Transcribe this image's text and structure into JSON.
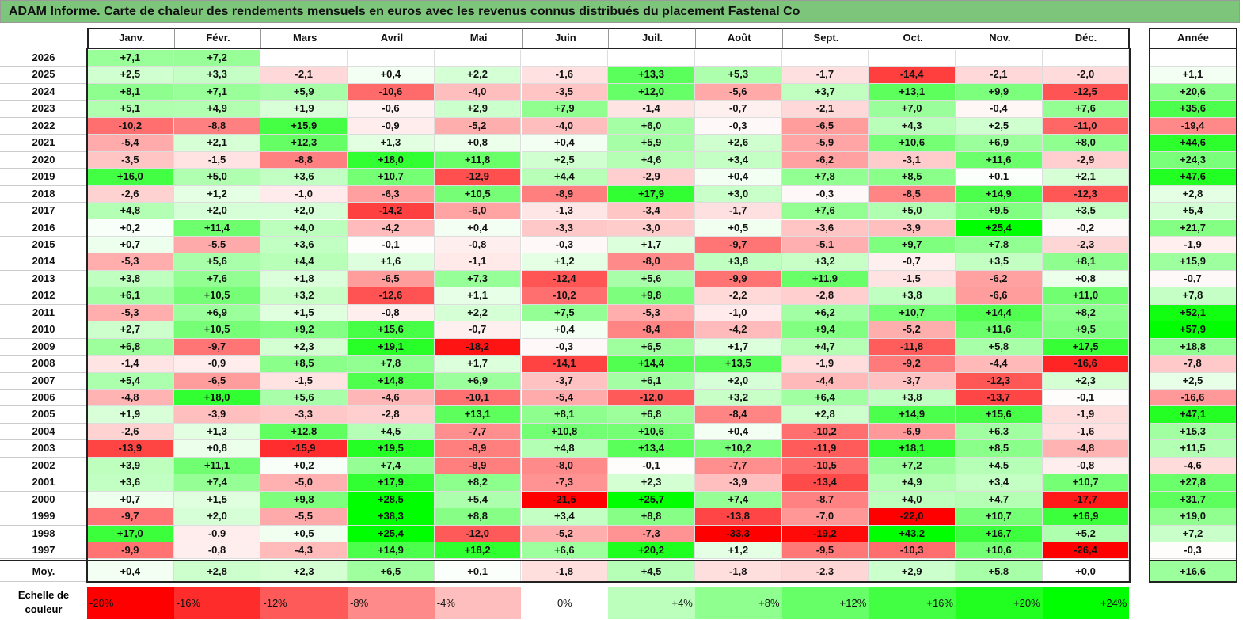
{
  "title": "ADAM Informe. Carte de chaleur des rendements mensuels en euros avec les revenus connus distribués du placement Fastenal Co",
  "chart_data": {
    "type": "heatmap",
    "title": "ADAM Informe. Carte de chaleur des rendements mensuels en euros avec les revenus connus distribués du placement Fastenal Co",
    "columns": [
      "Janv.",
      "Févr.",
      "Mars",
      "Avril",
      "Mai",
      "Juin",
      "Juil.",
      "Août",
      "Sept.",
      "Oct.",
      "Nov.",
      "Déc."
    ],
    "year_column": "Année",
    "rows": [
      {
        "year": "2026",
        "values": [
          "+7,1",
          "+7,2",
          "",
          "",
          "",
          "",
          "",
          "",
          "",
          "",
          "",
          ""
        ],
        "annual": ""
      },
      {
        "year": "2025",
        "values": [
          "+2,5",
          "+3,3",
          "-2,1",
          "+0,4",
          "+2,2",
          "-1,6",
          "+13,3",
          "+5,3",
          "-1,7",
          "-14,4",
          "-2,1",
          "-2,0"
        ],
        "annual": "+1,1"
      },
      {
        "year": "2024",
        "values": [
          "+8,1",
          "+7,1",
          "+5,9",
          "-10,6",
          "-4,0",
          "-3,5",
          "+12,0",
          "-5,6",
          "+3,7",
          "+13,1",
          "+9,9",
          "-12,5"
        ],
        "annual": "+20,6"
      },
      {
        "year": "2023",
        "values": [
          "+5,1",
          "+4,9",
          "+1,9",
          "-0,6",
          "+2,9",
          "+7,9",
          "-1,4",
          "-0,7",
          "-2,1",
          "+7,0",
          "-0,4",
          "+7,6"
        ],
        "annual": "+35,6"
      },
      {
        "year": "2022",
        "values": [
          "-10,2",
          "-8,8",
          "+15,9",
          "-0,9",
          "-5,2",
          "-4,0",
          "+6,0",
          "-0,3",
          "-6,5",
          "+4,3",
          "+2,5",
          "-11,0"
        ],
        "annual": "-19,4"
      },
      {
        "year": "2021",
        "values": [
          "-5,4",
          "+2,1",
          "+12,3",
          "+1,3",
          "+0,8",
          "+0,4",
          "+5,9",
          "+2,6",
          "-5,9",
          "+10,6",
          "+6,9",
          "+8,0"
        ],
        "annual": "+44,6"
      },
      {
        "year": "2020",
        "values": [
          "-3,5",
          "-1,5",
          "-8,8",
          "+18,0",
          "+11,8",
          "+2,5",
          "+4,6",
          "+3,4",
          "-6,2",
          "-3,1",
          "+11,6",
          "-2,9"
        ],
        "annual": "+24,3"
      },
      {
        "year": "2019",
        "values": [
          "+16,0",
          "+5,0",
          "+3,6",
          "+10,7",
          "-12,9",
          "+4,4",
          "-2,9",
          "+0,4",
          "+7,8",
          "+8,5",
          "+0,1",
          "+2,1"
        ],
        "annual": "+47,6"
      },
      {
        "year": "2018",
        "values": [
          "-2,6",
          "+1,2",
          "-1,0",
          "-6,3",
          "+10,5",
          "-8,9",
          "+17,9",
          "+3,0",
          "-0,3",
          "-8,5",
          "+14,9",
          "-12,3"
        ],
        "annual": "+2,8"
      },
      {
        "year": "2017",
        "values": [
          "+4,8",
          "+2,0",
          "+2,0",
          "-14,2",
          "-6,0",
          "-1,3",
          "-3,4",
          "-1,7",
          "+7,6",
          "+5,0",
          "+9,5",
          "+3,5"
        ],
        "annual": "+5,4"
      },
      {
        "year": "2016",
        "values": [
          "+0,2",
          "+11,4",
          "+4,0",
          "-4,2",
          "+0,4",
          "-3,3",
          "-3,0",
          "+0,5",
          "-3,6",
          "-3,9",
          "+25,4",
          "-0,2"
        ],
        "annual": "+21,7"
      },
      {
        "year": "2015",
        "values": [
          "+0,7",
          "-5,5",
          "+3,6",
          "-0,1",
          "-0,8",
          "-0,3",
          "+1,7",
          "-9,7",
          "-5,1",
          "+9,7",
          "+7,8",
          "-2,3"
        ],
        "annual": "-1,9"
      },
      {
        "year": "2014",
        "values": [
          "-5,3",
          "+5,6",
          "+4,4",
          "+1,6",
          "-1,1",
          "+1,2",
          "-8,0",
          "+3,8",
          "+3,2",
          "-0,7",
          "+3,5",
          "+8,1"
        ],
        "annual": "+15,9"
      },
      {
        "year": "2013",
        "values": [
          "+3,8",
          "+7,6",
          "+1,8",
          "-6,5",
          "+7,3",
          "-12,4",
          "+5,6",
          "-9,9",
          "+11,9",
          "-1,5",
          "-6,2",
          "+0,8"
        ],
        "annual": "-0,7"
      },
      {
        "year": "2012",
        "values": [
          "+6,1",
          "+10,5",
          "+3,2",
          "-12,6",
          "+1,1",
          "-10,2",
          "+9,8",
          "-2,2",
          "-2,8",
          "+3,8",
          "-6,6",
          "+11,0"
        ],
        "annual": "+7,8"
      },
      {
        "year": "2011",
        "values": [
          "-5,3",
          "+6,9",
          "+1,5",
          "-0,8",
          "+2,2",
          "+7,5",
          "-5,3",
          "-1,0",
          "+6,2",
          "+10,7",
          "+14,4",
          "+8,2"
        ],
        "annual": "+52,1"
      },
      {
        "year": "2010",
        "values": [
          "+2,7",
          "+10,5",
          "+9,2",
          "+15,6",
          "-0,7",
          "+0,4",
          "-8,4",
          "-4,2",
          "+9,4",
          "-5,2",
          "+11,6",
          "+9,5"
        ],
        "annual": "+57,9"
      },
      {
        "year": "2009",
        "values": [
          "+6,8",
          "-9,7",
          "+2,3",
          "+19,1",
          "-18,2",
          "-0,3",
          "+6,5",
          "+1,7",
          "+4,7",
          "-11,8",
          "+5,8",
          "+17,5"
        ],
        "annual": "+18,8"
      },
      {
        "year": "2008",
        "values": [
          "-1,4",
          "-0,9",
          "+8,5",
          "+7,8",
          "+1,7",
          "-14,1",
          "+14,4",
          "+13,5",
          "-1,9",
          "-9,2",
          "-4,4",
          "-16,6"
        ],
        "annual": "-7,8"
      },
      {
        "year": "2007",
        "values": [
          "+5,4",
          "-6,5",
          "-1,5",
          "+14,8",
          "+6,9",
          "-3,7",
          "+6,1",
          "+2,0",
          "-4,4",
          "-3,7",
          "-12,3",
          "+2,3"
        ],
        "annual": "+2,5"
      },
      {
        "year": "2006",
        "values": [
          "-4,8",
          "+18,0",
          "+5,6",
          "-4,6",
          "-10,1",
          "-5,4",
          "-12,0",
          "+3,2",
          "+6,4",
          "+3,8",
          "-13,7",
          "-0,1"
        ],
        "annual": "-16,6"
      },
      {
        "year": "2005",
        "values": [
          "+1,9",
          "-3,9",
          "-3,3",
          "-2,8",
          "+13,1",
          "+8,1",
          "+6,8",
          "-8,4",
          "+2,8",
          "+14,9",
          "+15,6",
          "-1,9"
        ],
        "annual": "+47,1"
      },
      {
        "year": "2004",
        "values": [
          "-2,6",
          "+1,3",
          "+12,8",
          "+4,5",
          "-7,7",
          "+10,8",
          "+10,6",
          "+0,4",
          "-10,2",
          "-6,9",
          "+6,3",
          "-1,6"
        ],
        "annual": "+15,3"
      },
      {
        "year": "2003",
        "values": [
          "-13,9",
          "+0,8",
          "-15,9",
          "+19,5",
          "-8,9",
          "+4,8",
          "+13,4",
          "+10,2",
          "-11,9",
          "+18,1",
          "+8,5",
          "-4,8"
        ],
        "annual": "+11,5"
      },
      {
        "year": "2002",
        "values": [
          "+3,9",
          "+11,1",
          "+0,2",
          "+7,4",
          "-8,9",
          "-8,0",
          "-0,1",
          "-7,7",
          "-10,5",
          "+7,2",
          "+4,5",
          "-0,8"
        ],
        "annual": "-4,6"
      },
      {
        "year": "2001",
        "values": [
          "+3,6",
          "+7,4",
          "-5,0",
          "+17,9",
          "+8,2",
          "-7,3",
          "+2,3",
          "-3,9",
          "-13,4",
          "+4,9",
          "+3,4",
          "+10,7"
        ],
        "annual": "+27,8"
      },
      {
        "year": "2000",
        "values": [
          "+0,7",
          "+1,5",
          "+9,8",
          "+28,5",
          "+5,4",
          "-21,5",
          "+25,7",
          "+7,4",
          "-8,7",
          "+4,0",
          "+4,7",
          "-17,7"
        ],
        "annual": "+31,7"
      },
      {
        "year": "1999",
        "values": [
          "-9,7",
          "+2,0",
          "-5,5",
          "+38,3",
          "+8,8",
          "+3,4",
          "+8,8",
          "-13,8",
          "-7,0",
          "-22,0",
          "+10,7",
          "+16,9"
        ],
        "annual": "+19,0"
      },
      {
        "year": "1998",
        "values": [
          "+17,0",
          "-0,9",
          "+0,5",
          "+25,4",
          "-12,0",
          "-5,2",
          "-7,3",
          "-33,3",
          "-19,2",
          "+43,2",
          "+16,7",
          "+5,2"
        ],
        "annual": "+7,2"
      },
      {
        "year": "1997",
        "values": [
          "-9,9",
          "-0,8",
          "-4,3",
          "+14,9",
          "+18,2",
          "+6,6",
          "+20,2",
          "+1,2",
          "-9,5",
          "-10,3",
          "+10,6",
          "-26,4"
        ],
        "annual": "-0,3"
      }
    ],
    "average": {
      "label": "Moy.",
      "values": [
        "+0,4",
        "+2,8",
        "+2,3",
        "+6,5",
        "+0,1",
        "-1,8",
        "+4,5",
        "-1,8",
        "-2,3",
        "+2,9",
        "+5,8",
        "+0,0"
      ],
      "annual": "+16,6"
    },
    "scale": {
      "label": "Echelle de couleur",
      "steps": [
        "-20%",
        "-16%",
        "-12%",
        "-8%",
        "-4%",
        "0%",
        "+4%",
        "+8%",
        "+12%",
        "+16%",
        "+20%",
        "+24%"
      ],
      "step_values": [
        -20,
        -16,
        -12,
        -8,
        -4,
        0,
        4,
        8,
        12,
        16,
        20,
        24
      ]
    },
    "colors": {
      "negative": "#ff0000",
      "neutral": "#ffffff",
      "positive": "#00ff00",
      "title_bar": "#7cc57a"
    }
  }
}
